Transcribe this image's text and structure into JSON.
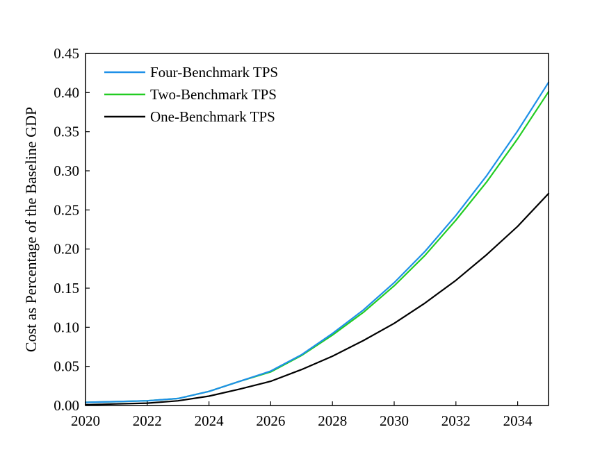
{
  "chart_data": {
    "type": "line",
    "title": "",
    "xlabel": "",
    "ylabel": "Cost as Percentage of the Baseline GDP",
    "xlim": [
      2020,
      2035
    ],
    "ylim": [
      0,
      0.45
    ],
    "xticks": [
      2020,
      2022,
      2024,
      2026,
      2028,
      2030,
      2032,
      2034
    ],
    "xtick_labels": [
      "2020",
      "2022",
      "2024",
      "2026",
      "2028",
      "2030",
      "2032",
      "2034"
    ],
    "yticks": [
      0,
      0.05,
      0.1,
      0.15,
      0.2,
      0.25,
      0.3,
      0.35,
      0.4,
      0.45
    ],
    "ytick_labels": [
      "0.00",
      "0.05",
      "0.10",
      "0.15",
      "0.20",
      "0.25",
      "0.30",
      "0.35",
      "0.40",
      "0.45"
    ],
    "grid": false,
    "legend_position": "top-left",
    "x": [
      2020,
      2021,
      2022,
      2023,
      2024,
      2025,
      2026,
      2027,
      2028,
      2029,
      2030,
      2031,
      2032,
      2033,
      2034,
      2035
    ],
    "series": [
      {
        "name": "Four-Benchmark TPS",
        "color": "#1e90e8",
        "values": [
          0.004,
          0.005,
          0.006,
          0.009,
          0.018,
          0.031,
          0.044,
          0.065,
          0.092,
          0.122,
          0.157,
          0.197,
          0.243,
          0.294,
          0.351,
          0.413
        ]
      },
      {
        "name": "Two-Benchmark TPS",
        "color": "#22cc22",
        "values": [
          0.004,
          0.005,
          0.006,
          0.009,
          0.018,
          0.031,
          0.043,
          0.064,
          0.09,
          0.119,
          0.153,
          0.192,
          0.237,
          0.286,
          0.341,
          0.401
        ]
      },
      {
        "name": "One-Benchmark TPS",
        "color": "#000000",
        "values": [
          0.001,
          0.002,
          0.003,
          0.006,
          0.012,
          0.021,
          0.031,
          0.046,
          0.063,
          0.083,
          0.105,
          0.131,
          0.16,
          0.193,
          0.229,
          0.271
        ]
      }
    ]
  }
}
